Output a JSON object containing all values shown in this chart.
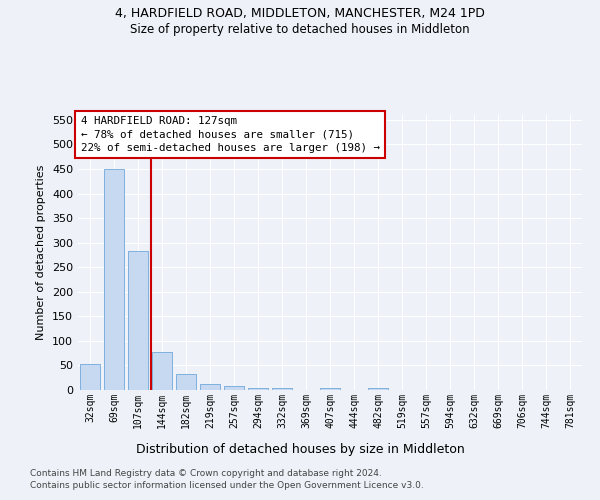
{
  "title1": "4, HARDFIELD ROAD, MIDDLETON, MANCHESTER, M24 1PD",
  "title2": "Size of property relative to detached houses in Middleton",
  "xlabel": "Distribution of detached houses by size in Middleton",
  "ylabel": "Number of detached properties",
  "categories": [
    "32sqm",
    "69sqm",
    "107sqm",
    "144sqm",
    "182sqm",
    "219sqm",
    "257sqm",
    "294sqm",
    "332sqm",
    "369sqm",
    "407sqm",
    "444sqm",
    "482sqm",
    "519sqm",
    "557sqm",
    "594sqm",
    "632sqm",
    "669sqm",
    "706sqm",
    "744sqm",
    "781sqm"
  ],
  "values": [
    53,
    450,
    283,
    78,
    32,
    13,
    9,
    4,
    4,
    0,
    5,
    0,
    4,
    0,
    0,
    0,
    0,
    0,
    0,
    0,
    0
  ],
  "bar_color": "#c6d9f0",
  "bar_edge_color": "#5b9bd5",
  "vline_color": "#cc0000",
  "vline_x_index": 2.54,
  "annotation_text": "4 HARDFIELD ROAD: 127sqm\n← 78% of detached houses are smaller (715)\n22% of semi-detached houses are larger (198) →",
  "annotation_box_color": "#cc0000",
  "ylim": [
    0,
    560
  ],
  "yticks": [
    0,
    50,
    100,
    150,
    200,
    250,
    300,
    350,
    400,
    450,
    500,
    550
  ],
  "footer1": "Contains HM Land Registry data © Crown copyright and database right 2024.",
  "footer2": "Contains public sector information licensed under the Open Government Licence v3.0.",
  "bg_color": "#eef2f8",
  "plot_bg_color": "#eef2f8"
}
